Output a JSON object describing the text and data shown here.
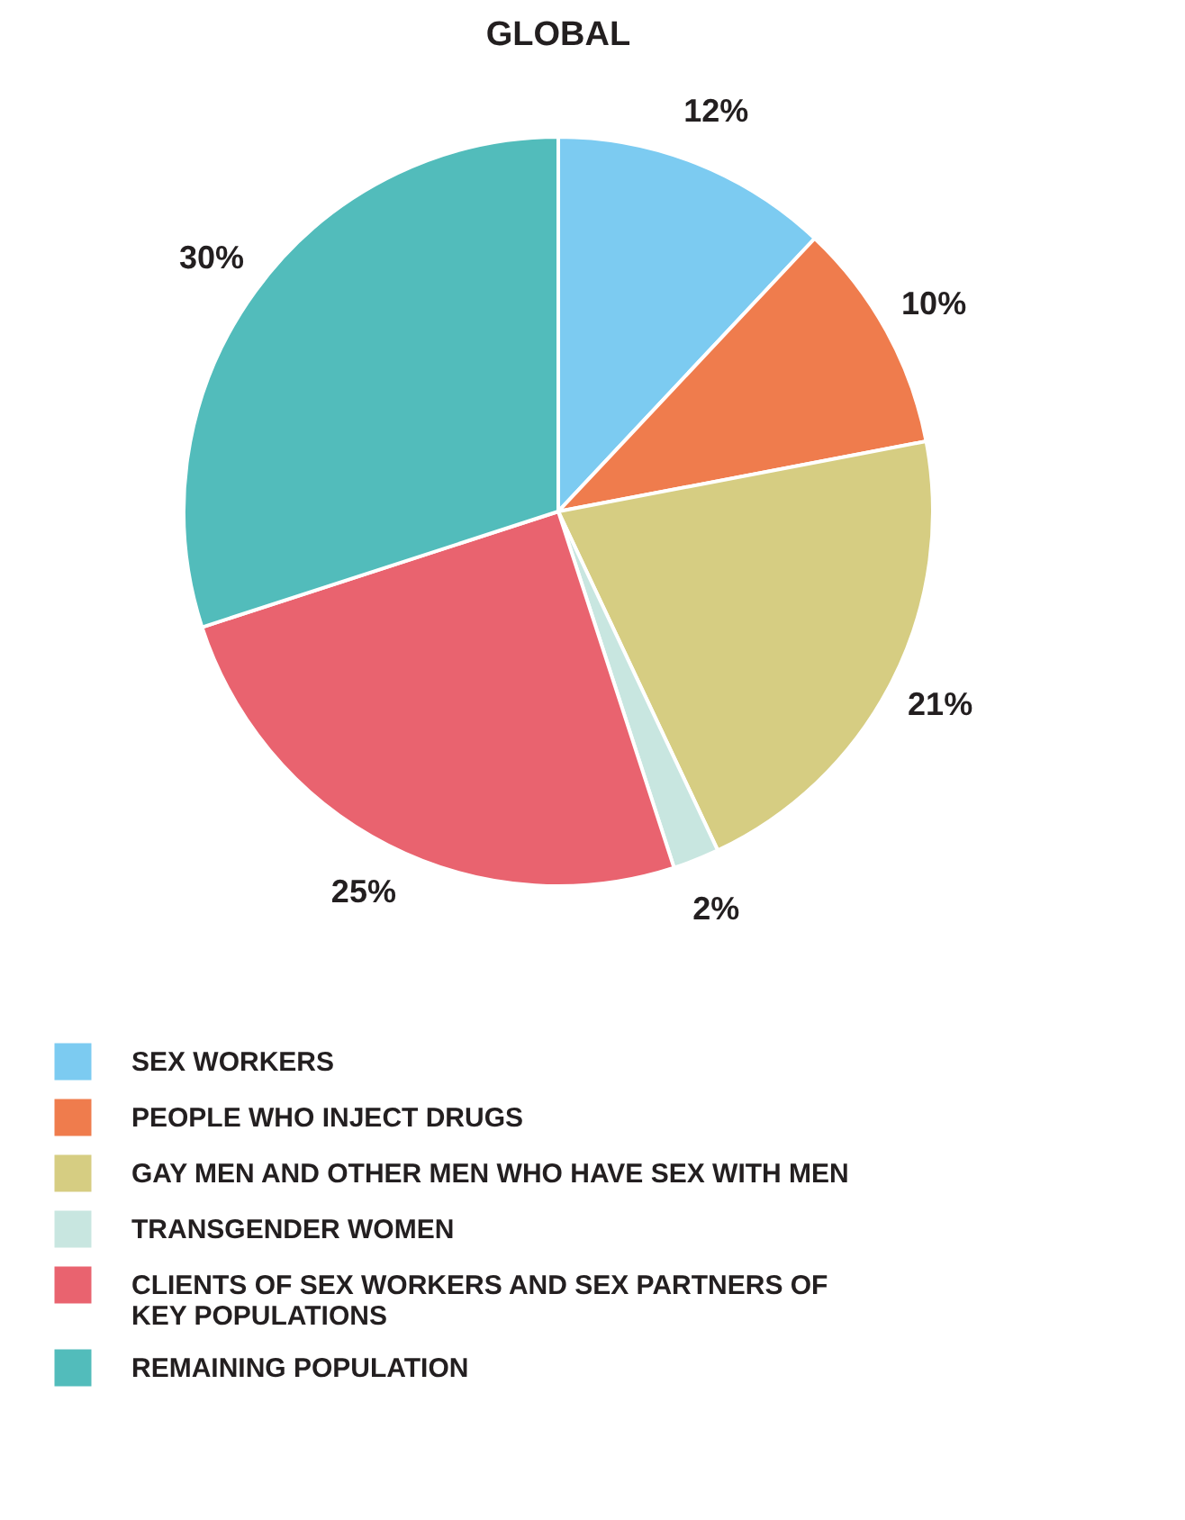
{
  "chart_data": {
    "type": "pie",
    "title": "GLOBAL",
    "categories": [
      "SEX WORKERS",
      "PEOPLE WHO INJECT DRUGS",
      "GAY MEN AND OTHER MEN WHO HAVE SEX WITH MEN",
      "TRANSGENDER WOMEN",
      "CLIENTS OF SEX WORKERS AND SEX PARTNERS OF KEY POPULATIONS",
      "REMAINING POPULATION"
    ],
    "values": [
      12,
      10,
      21,
      2,
      25,
      30
    ],
    "value_labels": [
      "12%",
      "10%",
      "21%",
      "2%",
      "25%",
      "30%"
    ],
    "colors": [
      "#7ccbf1",
      "#ef7c4d",
      "#d6cd82",
      "#c8e6e0",
      "#e9636f",
      "#52bcbb"
    ],
    "legend": "bottom"
  }
}
